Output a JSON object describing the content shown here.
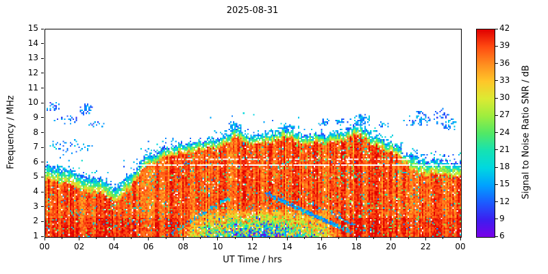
{
  "chart_data": {
    "type": "heatmap",
    "title": "2025-08-31",
    "xlabel": "UT Time / hrs",
    "ylabel": "Frequency / MHz",
    "xlim": [
      0,
      24
    ],
    "ylim": [
      1,
      15
    ],
    "grid": false,
    "xticks": {
      "values": [
        0,
        2,
        4,
        6,
        8,
        10,
        12,
        14,
        16,
        18,
        20,
        22,
        24
      ],
      "labels": [
        "00",
        "02",
        "04",
        "06",
        "08",
        "10",
        "12",
        "14",
        "16",
        "18",
        "20",
        "22",
        "00"
      ]
    },
    "yticks": {
      "values": [
        1,
        2,
        3,
        4,
        5,
        6,
        7,
        8,
        9,
        10,
        11,
        12,
        13,
        14,
        15
      ],
      "labels": [
        "1",
        "2",
        "3",
        "4",
        "5",
        "6",
        "7",
        "8",
        "9",
        "10",
        "11",
        "12",
        "13",
        "14",
        "15"
      ]
    },
    "colorbar": {
      "label": "Signal to Noise Ratio SNR / dB",
      "min": 6,
      "max": 42,
      "ticks": [
        6,
        9,
        12,
        15,
        18,
        21,
        24,
        27,
        30,
        33,
        36,
        39,
        42
      ],
      "stops": [
        [
          6,
          "#7a00e8"
        ],
        [
          9,
          "#3c1ef0"
        ],
        [
          12,
          "#1b5cff"
        ],
        [
          15,
          "#00a2ff"
        ],
        [
          18,
          "#00d8e0"
        ],
        [
          21,
          "#16e2b2"
        ],
        [
          24,
          "#52e865"
        ],
        [
          27,
          "#9eed3e"
        ],
        [
          30,
          "#dcea33"
        ],
        [
          33,
          "#ffc629"
        ],
        [
          36,
          "#ff8d1f"
        ],
        [
          39,
          "#ff4a11"
        ],
        [
          42,
          "#e00000"
        ]
      ]
    },
    "description": "HF ionospheric spectrogram: signal-to-noise ratio versus UT time and frequency. Strong echoes (red, 36-42 dB) fill 1 MHz up to a diurnal maximum-frequency envelope, capped by a cyan/green low-SNR edge; daytime D-layer absorption suppresses 1-3 MHz near midday; sporadic blue scatter points appear above the envelope near 8-10 MHz.",
    "envelope_max_freq_mhz": {
      "hours": [
        0,
        1,
        2,
        3,
        4,
        5,
        6,
        7,
        8,
        9,
        10,
        11,
        12,
        13,
        14,
        15,
        16,
        17,
        18,
        19,
        20,
        21,
        22,
        23,
        24
      ],
      "values": [
        5.9,
        5.6,
        5.2,
        5.0,
        4.4,
        5.3,
        6.5,
        7.0,
        7.3,
        7.5,
        7.6,
        8.3,
        7.8,
        8.0,
        8.3,
        7.9,
        7.9,
        8.0,
        8.5,
        7.8,
        7.3,
        6.5,
        6.2,
        6.1,
        6.0
      ]
    },
    "daytime_absorption_band": {
      "center_hour": 12.4,
      "half_width_hours": 4.9,
      "max_freq_mhz": 3.0
    },
    "quiet_lines": [
      {
        "f": 5.82,
        "hw": 0.07,
        "t0": 4.8,
        "t1": 24,
        "p": 0.85
      },
      {
        "f": 6.28,
        "hw": 0.05,
        "t0": 7.0,
        "t1": 21,
        "p": 0.5
      }
    ],
    "scatter_blobs": [
      {
        "t": 0.4,
        "f": 9.8,
        "rt": 0.5,
        "rf": 0.35,
        "d": 0.5,
        "s": 13
      },
      {
        "t": 1.2,
        "f": 8.9,
        "rt": 0.7,
        "rf": 0.3,
        "d": 0.3,
        "s": 13
      },
      {
        "t": 2.4,
        "f": 9.6,
        "rt": 0.45,
        "rf": 0.4,
        "d": 0.6,
        "s": 14
      },
      {
        "t": 2.9,
        "f": 8.6,
        "rt": 0.5,
        "rf": 0.25,
        "d": 0.3,
        "s": 13
      },
      {
        "t": 1.4,
        "f": 7.1,
        "rt": 1.5,
        "rf": 0.5,
        "d": 0.22,
        "s": 15
      },
      {
        "t": 10.9,
        "f": 8.45,
        "rt": 0.45,
        "rf": 0.35,
        "d": 0.7,
        "s": 16
      },
      {
        "t": 13.9,
        "f": 8.4,
        "rt": 0.5,
        "rf": 0.3,
        "d": 0.6,
        "s": 16
      },
      {
        "t": 16.1,
        "f": 8.75,
        "rt": 0.35,
        "rf": 0.3,
        "d": 0.5,
        "s": 14
      },
      {
        "t": 17.0,
        "f": 8.8,
        "rt": 0.3,
        "rf": 0.25,
        "d": 0.4,
        "s": 14
      },
      {
        "t": 18.3,
        "f": 8.9,
        "rt": 0.5,
        "rf": 0.4,
        "d": 0.7,
        "s": 15
      },
      {
        "t": 19.5,
        "f": 8.6,
        "rt": 0.3,
        "rf": 0.25,
        "d": 0.4,
        "s": 14
      },
      {
        "t": 21.5,
        "f": 8.8,
        "rt": 0.8,
        "rf": 0.45,
        "d": 0.3,
        "s": 14
      },
      {
        "t": 22.8,
        "f": 9.3,
        "rt": 0.6,
        "rf": 0.4,
        "d": 0.3,
        "s": 13
      },
      {
        "t": 23.4,
        "f": 8.6,
        "rt": 0.5,
        "rf": 0.5,
        "d": 0.35,
        "s": 14
      }
    ],
    "trails": [
      {
        "t0": 12.8,
        "f0": 3.9,
        "t1": 17.6,
        "f1": 1.35,
        "w": 0.13,
        "d": 0.8,
        "s": 15
      },
      {
        "t0": 7.3,
        "f0": 1.3,
        "t1": 10.5,
        "f1": 3.6,
        "w": 0.11,
        "d": 0.5,
        "s": 16
      },
      {
        "t0": 15.5,
        "f0": 3.2,
        "t1": 18.5,
        "f1": 1.4,
        "w": 0.09,
        "d": 0.35,
        "s": 16
      },
      {
        "t0": 21.3,
        "f0": 9.6,
        "t1": 23.2,
        "f1": 8.4,
        "w": 0.1,
        "d": 0.45,
        "s": 13
      }
    ]
  }
}
